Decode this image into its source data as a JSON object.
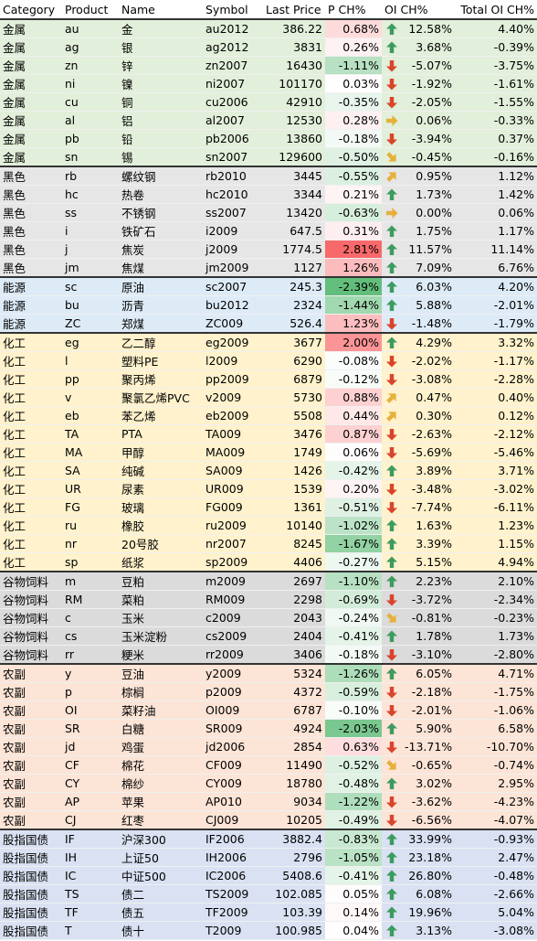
{
  "header": [
    "Category",
    "Product",
    "Name",
    "Symbol",
    "Last Price",
    "P CH%",
    "OI CH%",
    "Total OI CH%"
  ],
  "groups": [
    {
      "color": "#e2efda",
      "rows": [
        [
          "金属",
          "au",
          "金",
          "au2012",
          386.22,
          "0.68%",
          "12.58%",
          "4.40%"
        ],
        [
          "金属",
          "ag",
          "银",
          "ag2012",
          3831,
          "0.26%",
          "3.68%",
          "-0.39%"
        ],
        [
          "金属",
          "zn",
          "锌",
          "zn2007",
          16430,
          "-1.11%",
          "-5.07%",
          "-3.75%"
        ],
        [
          "金属",
          "ni",
          "镍",
          "ni2007",
          101170,
          "0.03%",
          "-1.92%",
          "-1.61%"
        ],
        [
          "金属",
          "cu",
          "铜",
          "cu2006",
          42910,
          "-0.35%",
          "-2.05%",
          "-1.55%"
        ],
        [
          "金属",
          "al",
          "铝",
          "al2007",
          12530,
          "0.28%",
          "0.06%",
          "-0.33%"
        ],
        [
          "金属",
          "pb",
          "铅",
          "pb2006",
          13860,
          "-0.18%",
          "-3.94%",
          "0.37%"
        ],
        [
          "金属",
          "sn",
          "锡",
          "sn2007",
          129600,
          "-0.50%",
          "-0.45%",
          "-0.16%"
        ]
      ]
    },
    {
      "color": "#e7e6e6",
      "rows": [
        [
          "黑色",
          "rb",
          "螺纹钢",
          "rb2010",
          3445,
          "-0.55%",
          "0.95%",
          "1.12%"
        ],
        [
          "黑色",
          "hc",
          "热卷",
          "hc2010",
          3344,
          "0.21%",
          "1.73%",
          "1.42%"
        ],
        [
          "黑色",
          "ss",
          "不锈钢",
          "ss2007",
          13420,
          "-0.63%",
          "0.00%",
          "0.06%"
        ],
        [
          "黑色",
          "i",
          "铁矿石",
          "i2009",
          647.5,
          "0.31%",
          "1.75%",
          "1.17%"
        ],
        [
          "黑色",
          "j",
          "焦炭",
          "j2009",
          1774.5,
          "2.81%",
          "11.57%",
          "11.14%"
        ],
        [
          "黑色",
          "jm",
          "焦煤",
          "jm2009",
          1127,
          "1.26%",
          "7.09%",
          "6.76%"
        ]
      ]
    },
    {
      "color": "#ddebf7",
      "rows": [
        [
          "能源",
          "sc",
          "原油",
          "sc2007",
          245.3,
          "-2.39%",
          "6.03%",
          "4.20%"
        ],
        [
          "能源",
          "bu",
          "沥青",
          "bu2012",
          2324,
          "-1.44%",
          "5.88%",
          "-2.01%"
        ],
        [
          "能源",
          "ZC",
          "郑煤",
          "ZC009",
          526.4,
          "1.23%",
          "-1.48%",
          "-1.79%"
        ]
      ]
    },
    {
      "color": "#fff2cc",
      "rows": [
        [
          "化工",
          "eg",
          "乙二醇",
          "eg2009",
          3677,
          "2.00%",
          "4.29%",
          "3.32%"
        ],
        [
          "化工",
          "l",
          "塑料PE",
          "l2009",
          6290,
          "-0.08%",
          "-2.02%",
          "-1.17%"
        ],
        [
          "化工",
          "pp",
          "聚丙烯",
          "pp2009",
          6879,
          "-0.12%",
          "-3.08%",
          "-2.28%"
        ],
        [
          "化工",
          "v",
          "聚氯乙烯PVC",
          "v2009",
          5730,
          "0.88%",
          "0.47%",
          "0.40%"
        ],
        [
          "化工",
          "eb",
          "苯乙烯",
          "eb2009",
          5508,
          "0.44%",
          "0.30%",
          "0.12%"
        ],
        [
          "化工",
          "TA",
          "PTA",
          "TA009",
          3476,
          "0.87%",
          "-2.63%",
          "-2.12%"
        ],
        [
          "化工",
          "MA",
          "甲醇",
          "MA009",
          1749,
          "0.06%",
          "-5.69%",
          "-5.46%"
        ],
        [
          "化工",
          "SA",
          "纯碱",
          "SA009",
          1426,
          "-0.42%",
          "3.89%",
          "3.71%"
        ],
        [
          "化工",
          "UR",
          "尿素",
          "UR009",
          1539,
          "0.20%",
          "-3.48%",
          "-3.02%"
        ],
        [
          "化工",
          "FG",
          "玻璃",
          "FG009",
          1361,
          "-0.51%",
          "-7.74%",
          "-6.11%"
        ],
        [
          "化工",
          "ru",
          "橡胶",
          "ru2009",
          10140,
          "-1.02%",
          "1.63%",
          "1.23%"
        ],
        [
          "化工",
          "nr",
          "20号胶",
          "nr2007",
          8245,
          "-1.67%",
          "3.39%",
          "1.15%"
        ],
        [
          "化工",
          "sp",
          "纸浆",
          "sp2009",
          4406,
          "-0.27%",
          "5.15%",
          "4.94%"
        ]
      ]
    },
    {
      "color": "#dbdbdb",
      "rows": [
        [
          "谷物饲料",
          "m",
          "豆粕",
          "m2009",
          2697,
          "-1.10%",
          "2.23%",
          "2.10%"
        ],
        [
          "谷物饲料",
          "RM",
          "菜粕",
          "RM009",
          2298,
          "-0.69%",
          "-3.72%",
          "-2.34%"
        ],
        [
          "谷物饲料",
          "c",
          "玉米",
          "c2009",
          2043,
          "-0.24%",
          "-0.81%",
          "-0.23%"
        ],
        [
          "谷物饲料",
          "cs",
          "玉米淀粉",
          "cs2009",
          2404,
          "-0.41%",
          "1.78%",
          "1.73%"
        ],
        [
          "谷物饲料",
          "rr",
          "粳米",
          "rr2009",
          3406,
          "-0.18%",
          "-3.10%",
          "-2.80%"
        ]
      ]
    },
    {
      "color": "#fce4d6",
      "rows": [
        [
          "农副",
          "y",
          "豆油",
          "y2009",
          5324,
          "-1.26%",
          "6.05%",
          "4.71%"
        ],
        [
          "农副",
          "p",
          "棕榈",
          "p2009",
          4372,
          "-0.59%",
          "-2.18%",
          "-1.75%"
        ],
        [
          "农副",
          "OI",
          "菜籽油",
          "OI009",
          6787,
          "-0.10%",
          "-2.01%",
          "-1.06%"
        ],
        [
          "农副",
          "SR",
          "白糖",
          "SR009",
          4924,
          "-2.03%",
          "5.90%",
          "6.58%"
        ],
        [
          "农副",
          "jd",
          "鸡蛋",
          "jd2006",
          2854,
          "0.63%",
          "-13.71%",
          "-10.70%"
        ],
        [
          "农副",
          "CF",
          "棉花",
          "CF009",
          11490,
          "-0.52%",
          "-0.65%",
          "-0.74%"
        ],
        [
          "农副",
          "CY",
          "棉纱",
          "CY009",
          18780,
          "-0.48%",
          "3.02%",
          "2.95%"
        ],
        [
          "农副",
          "AP",
          "苹果",
          "AP010",
          9034,
          "-1.22%",
          "-3.62%",
          "-4.23%"
        ],
        [
          "农副",
          "CJ",
          "红枣",
          "CJ009",
          10205,
          "-0.49%",
          "-6.56%",
          "-4.07%"
        ]
      ]
    },
    {
      "color": "#d9e1f2",
      "rows": [
        [
          "股指国债",
          "IF",
          "沪深300",
          "IF2006",
          3882.4,
          "-0.83%",
          "33.99%",
          "-0.93%"
        ],
        [
          "股指国债",
          "IH",
          "上证50",
          "IH2006",
          2796,
          "-1.05%",
          "23.18%",
          "2.47%"
        ],
        [
          "股指国债",
          "IC",
          "中证500",
          "IC2006",
          5408.6,
          "-0.41%",
          "26.80%",
          "-0.48%"
        ],
        [
          "股指国债",
          "TS",
          "债二",
          "TS2009",
          102.085,
          "0.05%",
          "6.08%",
          "-2.66%"
        ],
        [
          "股指国债",
          "TF",
          "债五",
          "TF2009",
          103.39,
          "0.14%",
          "19.96%",
          "5.04%"
        ],
        [
          "股指国债",
          "T",
          "债十",
          "T2009",
          100.985,
          "0.04%",
          "3.13%",
          "-3.08%"
        ]
      ]
    }
  ]
}
